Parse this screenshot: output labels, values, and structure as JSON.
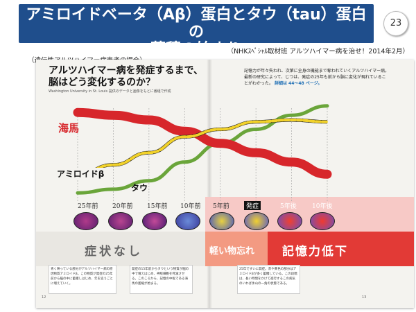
{
  "slide": {
    "title": "アミロイドベータ（Aβ）蛋白とタウ（tau）蛋白の\n蓄積の始まり",
    "page_number": "23",
    "source": "（NHKｽﾍﾟｼｬﾙ取材班 アルツハイマー病を治せ！2014年2月）",
    "note": "（遺伝性アルツハイマー病患者の場合）"
  },
  "book": {
    "headline": "アルツハイマー病を発症するまで、\n脳はどう変化するのか？",
    "caption": "Washington University in St. Louis 提供のデータと画像をもとに番組で作成",
    "description": "記憶力が年々失われ、次第に全身の機能まで奪われていくアルツハイマー病。最新の研究によって、じつは、発症の25年も前から脳に変化が現れていることがわかった。",
    "description_link": "詳細は 44〜48 ページ。",
    "labels": {
      "hippocampus": "海馬",
      "amyloid": "アミロイドβ",
      "tau": "タウ"
    },
    "timeline": [
      "25年前",
      "20年前",
      "15年前",
      "10年前",
      "5年前",
      "発症",
      "5年後",
      "10年後"
    ],
    "stages": {
      "none": "症状なし",
      "mild": "軽い物忘れ",
      "memory": "記憶力低下"
    },
    "footnotes": [
      "青く映っている部分がアルツハイマー病の原因物質アミロイドβ。この物質が発症の25年前から脳の中に蓄積しはじめ、年を追うごとに増えていく。",
      "発症の15年前からタウという物質が脳の中で増えはじめ、神経細胞を死滅させる。このころから、記憶の中枢である海馬の萎縮が始まる。",
      "25年ですいに発症。赤や黄色の部分はアミロイドβが多く蓄積している。この段階は、長い時間をかけて進行するこの病気のいわば氷山の一角の状態である。"
    ],
    "page_left": "12",
    "page_right": "13"
  },
  "colors": {
    "title_bg": "#1f4e8c",
    "hippocampus": "#d7262b",
    "amyloid": "#f2d22a",
    "tau": "#6aa53a",
    "memory_band": "#e23a36",
    "mild_band": "#f39a82"
  },
  "chart_data": {
    "type": "line",
    "x": [
      "25年前",
      "20年前",
      "15年前",
      "10年前",
      "5年前",
      "発症",
      "5年後",
      "10年後"
    ],
    "ylim": [
      0,
      100
    ],
    "series": [
      {
        "name": "海馬",
        "values": [
          88,
          85,
          80,
          68,
          55,
          45,
          35,
          22
        ]
      },
      {
        "name": "アミロイドβ",
        "values": [
          22,
          32,
          45,
          62,
          70,
          78,
          80,
          78
        ]
      },
      {
        "name": "タウ",
        "values": [
          2,
          6,
          15,
          35,
          55,
          70,
          85,
          95
        ]
      }
    ]
  }
}
